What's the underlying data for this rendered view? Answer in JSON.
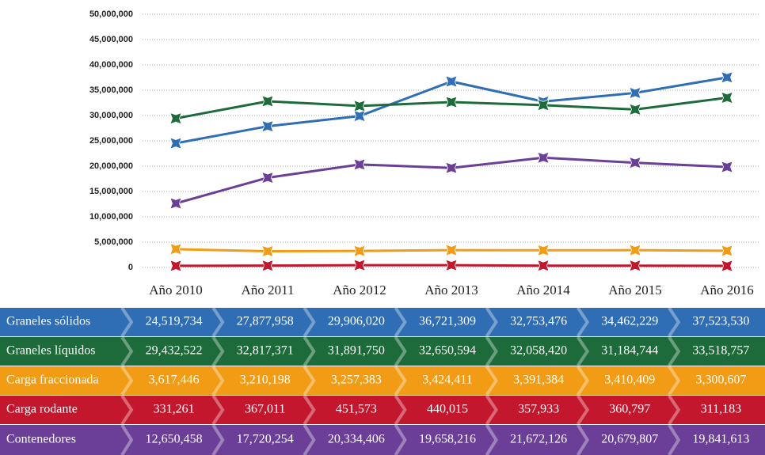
{
  "chart_data": {
    "type": "line",
    "categories": [
      "Año 2010",
      "Año 2011",
      "Año 2012",
      "Año 2013",
      "Año 2014",
      "Año 2015",
      "Año 2016"
    ],
    "ylim": [
      0,
      50000000
    ],
    "yticks": [
      0,
      {
        "value": 5000000,
        "label": "5,000,000"
      },
      {
        "value": 10000000,
        "label": "10,000,000"
      },
      {
        "value": 15000000,
        "label": "15,000,000"
      },
      {
        "value": 20000000,
        "label": "20,000,000"
      },
      {
        "value": 25000000,
        "label": "25,000,000"
      },
      {
        "value": 30000000,
        "label": "30,000,000"
      },
      {
        "value": 35000000,
        "label": "35,000,000"
      },
      {
        "value": 40000000,
        "label": "40,000,000"
      },
      {
        "value": 45000000,
        "label": "45,000,000"
      },
      {
        "value": 50000000,
        "label": "50,000,000"
      }
    ],
    "grid": true,
    "series": [
      {
        "name": "Graneles sólidos",
        "color": "#2f6db5",
        "values": [
          24519734,
          27877958,
          29906020,
          36721309,
          32753476,
          34462229,
          37523530
        ],
        "value_labels": [
          "24,519,734",
          "27,877,958",
          "29,906,020",
          "36,721,309",
          "32,753,476",
          "34,462,229",
          "37,523,530"
        ]
      },
      {
        "name": "Graneles líquidos",
        "color": "#1d6b3b",
        "values": [
          29432522,
          32817371,
          31891750,
          32650594,
          32058420,
          31184744,
          33518757
        ],
        "value_labels": [
          "29,432,522",
          "32,817,371",
          "31,891,750",
          "32,650,594",
          "32,058,420",
          "31,184,744",
          "33,518,757"
        ]
      },
      {
        "name": "Carga fraccionada",
        "color": "#f29b14",
        "values": [
          3617446,
          3210198,
          3257383,
          3424411,
          3391384,
          3410409,
          3300607
        ],
        "value_labels": [
          "3,617,446",
          "3,210,198",
          "3,257,383",
          "3,424,411",
          "3,391,384",
          "3,410,409",
          "3,300,607"
        ]
      },
      {
        "name": "Carga rodante",
        "color": "#c3172d",
        "values": [
          331261,
          367011,
          451573,
          440015,
          357933,
          360797,
          311183
        ],
        "value_labels": [
          "331,261",
          "367,011",
          "451,573",
          "440,015",
          "357,933",
          "360,797",
          "311,183"
        ]
      },
      {
        "name": "Contenedores",
        "color": "#6b3f97",
        "values": [
          12650458,
          17720254,
          20334406,
          19658216,
          21672126,
          20679807,
          19841613
        ],
        "value_labels": [
          "12,650,458",
          "17,720,254",
          "20,334,406",
          "19,658,216",
          "21,672,126",
          "20,679,807",
          "19,841,613"
        ]
      }
    ]
  }
}
